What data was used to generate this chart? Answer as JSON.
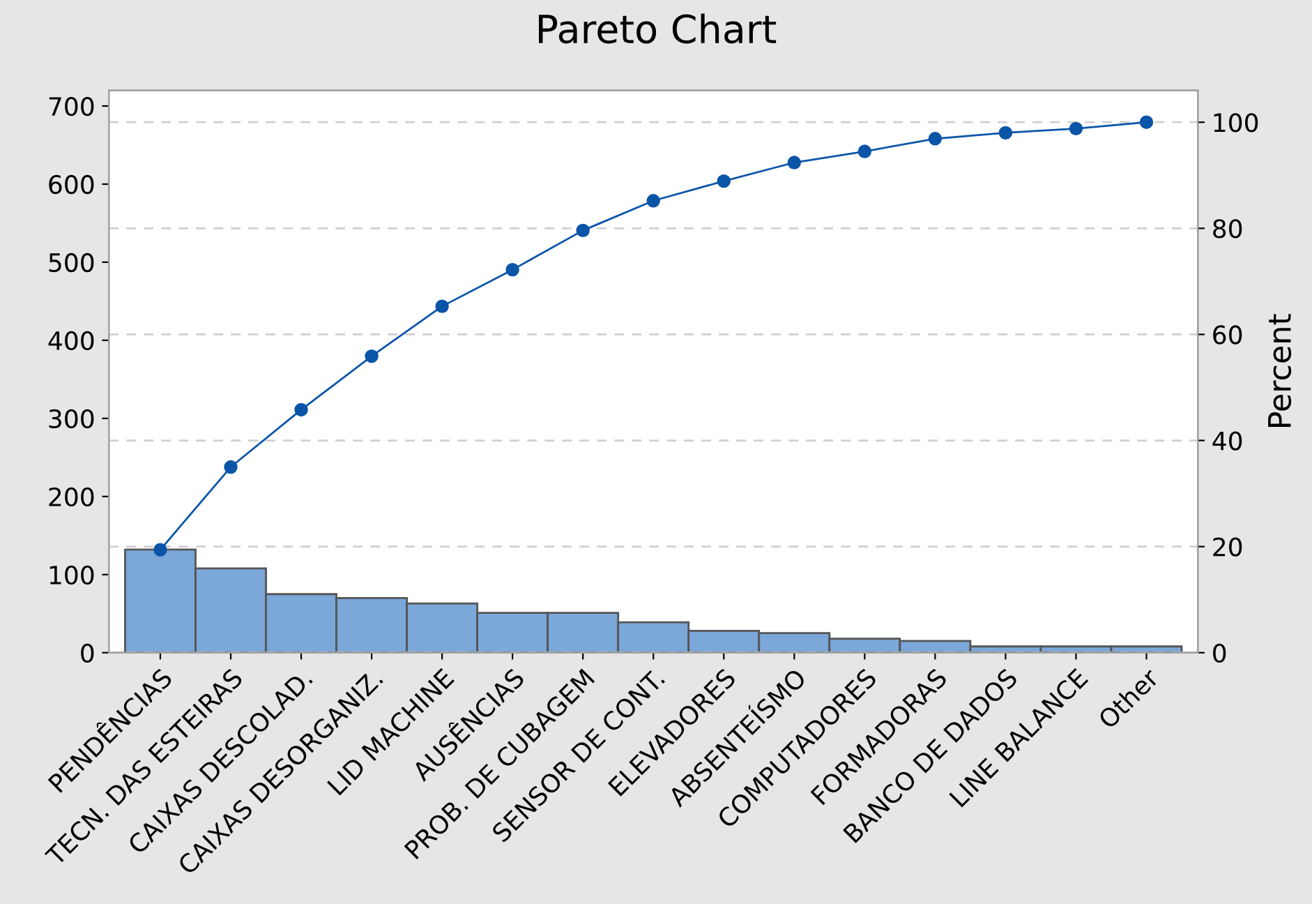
{
  "chart_data": {
    "type": "bar",
    "title": "Pareto Chart",
    "y2label": "Percent",
    "categories": [
      "PENDÊNCIAS",
      "TECN. DAS ESTEIRAS",
      "CAIXAS DESCOLAD.",
      "CAIXAS DESORGANIZ.",
      "LID MACHINE",
      "AUSÊNCIAS",
      "PROB. DE CUBAGEM",
      "SENSOR DE CONT.",
      "ELEVADORES",
      "ABSENTEÍSMO",
      "COMPUTADORES",
      "FORMADORAS",
      "BANCO DE DADOS",
      "LINE BALANCE",
      "Other"
    ],
    "series": [
      {
        "color": "#7ba7d9",
        "values": [
          132,
          108,
          75,
          70,
          63,
          51,
          51,
          39,
          28,
          25,
          18,
          15,
          8,
          8,
          8
        ]
      },
      {
        "type": "line",
        "axis": "y2",
        "color": "#0a55a8",
        "marker": "circle",
        "values": [
          19.4,
          35.0,
          45.8,
          55.9,
          65.3,
          72.2,
          79.6,
          85.2,
          88.9,
          92.4,
          94.5,
          96.9,
          98.0,
          98.8,
          100
        ]
      }
    ],
    "ylim": [
      0,
      720
    ],
    "yticks": [
      0,
      100,
      200,
      300,
      400,
      500,
      600,
      700
    ],
    "y2lim": [
      0,
      106
    ],
    "y2ticks": [
      0,
      20,
      40,
      60,
      80,
      100
    ],
    "grid": "y2",
    "line_style": "solid"
  }
}
